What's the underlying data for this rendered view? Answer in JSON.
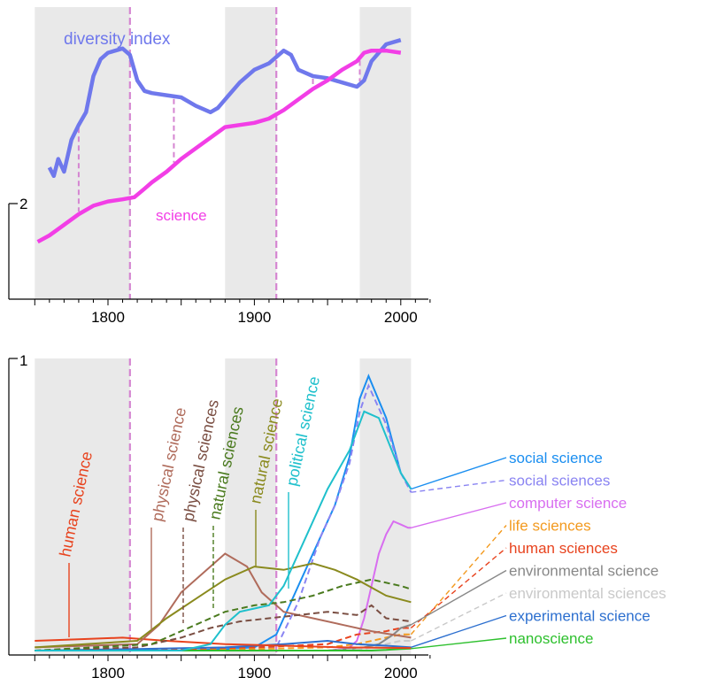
{
  "chart_data": [
    {
      "type": "line",
      "title": "",
      "xlabel": "",
      "ylabel": "",
      "x_ticks": [
        1800,
        1900,
        2000
      ],
      "y_tick_label": "2",
      "shaded_periods": [
        [
          1750,
          1815
        ],
        [
          1880,
          1915
        ],
        [
          1972,
          2007
        ]
      ],
      "event_years": [
        1815,
        1915
      ],
      "colors": {
        "diversity": "#6f78ec",
        "science": "#f23ee6",
        "shade": "#e9e9e9",
        "event": "#d585d1"
      },
      "series": [
        {
          "name": "diversity index",
          "x": [
            1760,
            1763,
            1766,
            1770,
            1775,
            1780,
            1785,
            1790,
            1795,
            1800,
            1805,
            1810,
            1815,
            1820,
            1825,
            1830,
            1840,
            1850,
            1860,
            1870,
            1875,
            1880,
            1890,
            1900,
            1910,
            1920,
            1925,
            1930,
            1940,
            1950,
            1955,
            1960,
            1970,
            1975,
            1980,
            1990,
            2000
          ],
          "y": [
            0.42,
            0.38,
            0.46,
            0.4,
            0.55,
            0.62,
            0.68,
            0.85,
            0.93,
            0.96,
            0.97,
            0.98,
            0.95,
            0.83,
            0.78,
            0.77,
            0.76,
            0.75,
            0.71,
            0.68,
            0.7,
            0.74,
            0.82,
            0.88,
            0.91,
            0.97,
            0.95,
            0.88,
            0.85,
            0.84,
            0.83,
            0.82,
            0.8,
            0.83,
            0.92,
            1.0,
            1.02
          ]
        },
        {
          "name": "science",
          "x": [
            1752,
            1760,
            1770,
            1780,
            1790,
            1800,
            1810,
            1818,
            1825,
            1830,
            1840,
            1850,
            1860,
            1870,
            1880,
            1890,
            1900,
            1910,
            1920,
            1930,
            1940,
            1950,
            1960,
            1970,
            1975,
            1980,
            1990,
            2000
          ],
          "y": [
            0.07,
            0.1,
            0.15,
            0.2,
            0.24,
            0.26,
            0.27,
            0.28,
            0.32,
            0.35,
            0.4,
            0.46,
            0.51,
            0.56,
            0.61,
            0.62,
            0.63,
            0.65,
            0.69,
            0.74,
            0.79,
            0.83,
            0.88,
            0.92,
            0.96,
            0.97,
            0.97,
            0.96
          ]
        }
      ],
      "annotations": [
        "diversity index",
        "science"
      ]
    },
    {
      "type": "line",
      "title": "",
      "xlabel": "",
      "ylabel": "",
      "x_ticks": [
        1800,
        1900,
        2000
      ],
      "y_tick_label": "1",
      "shaded_periods": [
        [
          1750,
          1815
        ],
        [
          1880,
          1915
        ],
        [
          1972,
          2007
        ]
      ],
      "event_years": [
        1815,
        1915
      ],
      "series": [
        {
          "name": "social science",
          "color": "#1a8ef0",
          "dash": false,
          "x": [
            1750,
            1850,
            1880,
            1900,
            1915,
            1930,
            1945,
            1955,
            1965,
            1972,
            1978,
            1990,
            2000,
            2007
          ],
          "y": [
            0.0,
            0.0,
            0.005,
            0.01,
            0.05,
            0.2,
            0.35,
            0.45,
            0.6,
            0.78,
            0.85,
            0.72,
            0.55,
            0.5
          ]
        },
        {
          "name": "social sciences",
          "color": "#8a84f2",
          "dash": true,
          "x": [
            1750,
            1850,
            1900,
            1915,
            1930,
            1945,
            1955,
            1965,
            1972,
            1978,
            1990,
            2000,
            2007
          ],
          "y": [
            0.0,
            0.0,
            0.005,
            0.01,
            0.15,
            0.35,
            0.45,
            0.58,
            0.74,
            0.82,
            0.7,
            0.55,
            0.49
          ]
        },
        {
          "name": "computer science",
          "color": "#d86ef0",
          "dash": false,
          "x": [
            1750,
            1950,
            1960,
            1965,
            1970,
            1975,
            1980,
            1985,
            1990,
            1995,
            2000,
            2005,
            2007
          ],
          "y": [
            0.0,
            0.0,
            0.005,
            0.01,
            0.03,
            0.1,
            0.2,
            0.3,
            0.36,
            0.4,
            0.39,
            0.38,
            0.38
          ]
        },
        {
          "name": "life sciences",
          "color": "#f39a1f",
          "dash": true,
          "x": [
            1750,
            1900,
            1950,
            1970,
            1990,
            2000,
            2007
          ],
          "y": [
            0.0,
            0.005,
            0.01,
            0.02,
            0.04,
            0.05,
            0.05
          ]
        },
        {
          "name": "human sciences",
          "color": "#e8431e",
          "dash": true,
          "x": [
            1750,
            1850,
            1900,
            1950,
            1970,
            1990,
            2000,
            2007
          ],
          "y": [
            0.0,
            0.005,
            0.01,
            0.02,
            0.05,
            0.06,
            0.07,
            0.07
          ]
        },
        {
          "name": "environmental science",
          "color": "#888888",
          "dash": false,
          "x": [
            1750,
            1950,
            1965,
            1975,
            1985,
            1995,
            2000,
            2007
          ],
          "y": [
            0.0,
            0.0,
            0.005,
            0.01,
            0.02,
            0.05,
            0.07,
            0.08
          ]
        },
        {
          "name": "environmental sciences",
          "color": "#c9c9c9",
          "dash": true,
          "x": [
            1750,
            1950,
            1975,
            1990,
            2000,
            2007
          ],
          "y": [
            0.0,
            0.0,
            0.005,
            0.02,
            0.03,
            0.03
          ]
        },
        {
          "name": "experimental science",
          "color": "#2c6fcf",
          "dash": false,
          "x": [
            1750,
            1820,
            1880,
            1920,
            1950,
            1970,
            1990,
            2007
          ],
          "y": [
            0.0,
            0.005,
            0.01,
            0.02,
            0.03,
            0.02,
            0.015,
            0.01
          ]
        },
        {
          "name": "nanoscience",
          "color": "#2ec02e",
          "dash": false,
          "x": [
            1750,
            1980,
            1990,
            2000,
            2007
          ],
          "y": [
            0.0,
            0.0,
            0.002,
            0.005,
            0.006
          ]
        },
        {
          "name": "human science",
          "color": "#e8431e",
          "dash": false,
          "x": [
            1750,
            1780,
            1810,
            1840,
            1880,
            1920,
            1960,
            2007
          ],
          "y": [
            0.03,
            0.035,
            0.04,
            0.03,
            0.02,
            0.015,
            0.01,
            0.008
          ]
        },
        {
          "name": "physical science",
          "color": "#b06c5c",
          "dash": false,
          "x": [
            1750,
            1820,
            1835,
            1850,
            1865,
            1880,
            1895,
            1905,
            1920,
            1940,
            1960,
            1980,
            2007
          ],
          "y": [
            0.01,
            0.02,
            0.08,
            0.18,
            0.24,
            0.3,
            0.26,
            0.18,
            0.12,
            0.1,
            0.08,
            0.06,
            0.04
          ]
        },
        {
          "name": "physical sciences",
          "color": "#7a4e42",
          "dash": true,
          "x": [
            1750,
            1820,
            1850,
            1870,
            1890,
            1910,
            1930,
            1950,
            1970,
            1980,
            1990,
            2007
          ],
          "y": [
            0.0,
            0.01,
            0.04,
            0.07,
            0.09,
            0.1,
            0.11,
            0.12,
            0.11,
            0.14,
            0.1,
            0.09
          ]
        },
        {
          "name": "natural sciences",
          "color": "#4a7a1e",
          "dash": true,
          "x": [
            1750,
            1830,
            1860,
            1880,
            1900,
            1920,
            1940,
            1960,
            1980,
            2000,
            2007
          ],
          "y": [
            0.0,
            0.02,
            0.08,
            0.12,
            0.14,
            0.15,
            0.17,
            0.2,
            0.22,
            0.2,
            0.19
          ]
        },
        {
          "name": "natural science",
          "color": "#8a8a1e",
          "dash": false,
          "x": [
            1750,
            1820,
            1840,
            1860,
            1880,
            1900,
            1920,
            1940,
            1955,
            1970,
            1990,
            2007
          ],
          "y": [
            0.01,
            0.03,
            0.1,
            0.16,
            0.22,
            0.26,
            0.25,
            0.27,
            0.25,
            0.22,
            0.17,
            0.15
          ]
        },
        {
          "name": "political science",
          "color": "#1fc0cc",
          "dash": false,
          "x": [
            1750,
            1850,
            1870,
            1880,
            1890,
            1900,
            1910,
            1920,
            1935,
            1950,
            1965,
            1975,
            1985,
            2000,
            2007
          ],
          "y": [
            0.0,
            0.0,
            0.02,
            0.08,
            0.12,
            0.13,
            0.14,
            0.2,
            0.35,
            0.5,
            0.62,
            0.74,
            0.72,
            0.55,
            0.5
          ]
        }
      ]
    }
  ]
}
